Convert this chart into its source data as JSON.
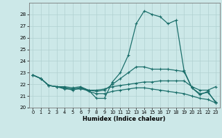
{
  "xlabel": "Humidex (Indice chaleur)",
  "background_color": "#cce8e8",
  "line_color": "#1a6e6a",
  "xlim": [
    -0.5,
    23.5
  ],
  "ylim": [
    20,
    29
  ],
  "yticks": [
    20,
    21,
    22,
    23,
    24,
    25,
    26,
    27,
    28
  ],
  "xticks": [
    0,
    1,
    2,
    3,
    4,
    5,
    6,
    7,
    8,
    9,
    10,
    11,
    12,
    13,
    14,
    15,
    16,
    17,
    18,
    19,
    20,
    21,
    22,
    23
  ],
  "curves": [
    {
      "x": [
        0,
        1,
        2,
        3,
        4,
        5,
        6,
        7,
        8,
        9,
        10,
        11,
        12,
        13,
        14,
        15,
        16,
        17,
        18,
        19,
        20,
        21,
        22,
        23
      ],
      "y": [
        22.8,
        22.5,
        21.9,
        21.8,
        21.6,
        21.6,
        21.6,
        21.5,
        20.8,
        20.8,
        22.2,
        23.0,
        24.5,
        27.2,
        28.3,
        28.0,
        27.8,
        27.2,
        27.5,
        23.2,
        21.7,
        21.1,
        21.4,
        20.4
      ]
    },
    {
      "x": [
        0,
        1,
        2,
        3,
        4,
        5,
        6,
        7,
        8,
        9,
        10,
        11,
        12,
        13,
        14,
        15,
        16,
        17,
        18,
        19,
        20,
        21,
        22,
        23
      ],
      "y": [
        22.8,
        22.5,
        21.9,
        21.8,
        21.8,
        21.7,
        21.8,
        21.5,
        21.4,
        21.5,
        22.0,
        22.5,
        23.0,
        23.5,
        23.5,
        23.3,
        23.3,
        23.3,
        23.2,
        23.1,
        21.7,
        21.2,
        21.3,
        20.5
      ]
    },
    {
      "x": [
        0,
        1,
        2,
        3,
        4,
        5,
        6,
        7,
        8,
        9,
        10,
        11,
        12,
        13,
        14,
        15,
        16,
        17,
        18,
        19,
        20,
        21,
        22,
        23
      ],
      "y": [
        22.8,
        22.5,
        21.9,
        21.8,
        21.7,
        21.6,
        21.7,
        21.5,
        21.5,
        21.6,
        21.8,
        21.9,
        22.0,
        22.1,
        22.2,
        22.2,
        22.3,
        22.3,
        22.3,
        22.3,
        21.8,
        21.5,
        21.5,
        21.8
      ]
    },
    {
      "x": [
        0,
        1,
        2,
        3,
        4,
        5,
        6,
        7,
        8,
        9,
        10,
        11,
        12,
        13,
        14,
        15,
        16,
        17,
        18,
        19,
        20,
        21,
        22,
        23
      ],
      "y": [
        22.8,
        22.5,
        21.9,
        21.8,
        21.7,
        21.5,
        21.7,
        21.4,
        21.2,
        21.2,
        21.4,
        21.5,
        21.6,
        21.7,
        21.7,
        21.6,
        21.5,
        21.4,
        21.3,
        21.2,
        21.0,
        20.8,
        20.7,
        20.4
      ]
    }
  ]
}
